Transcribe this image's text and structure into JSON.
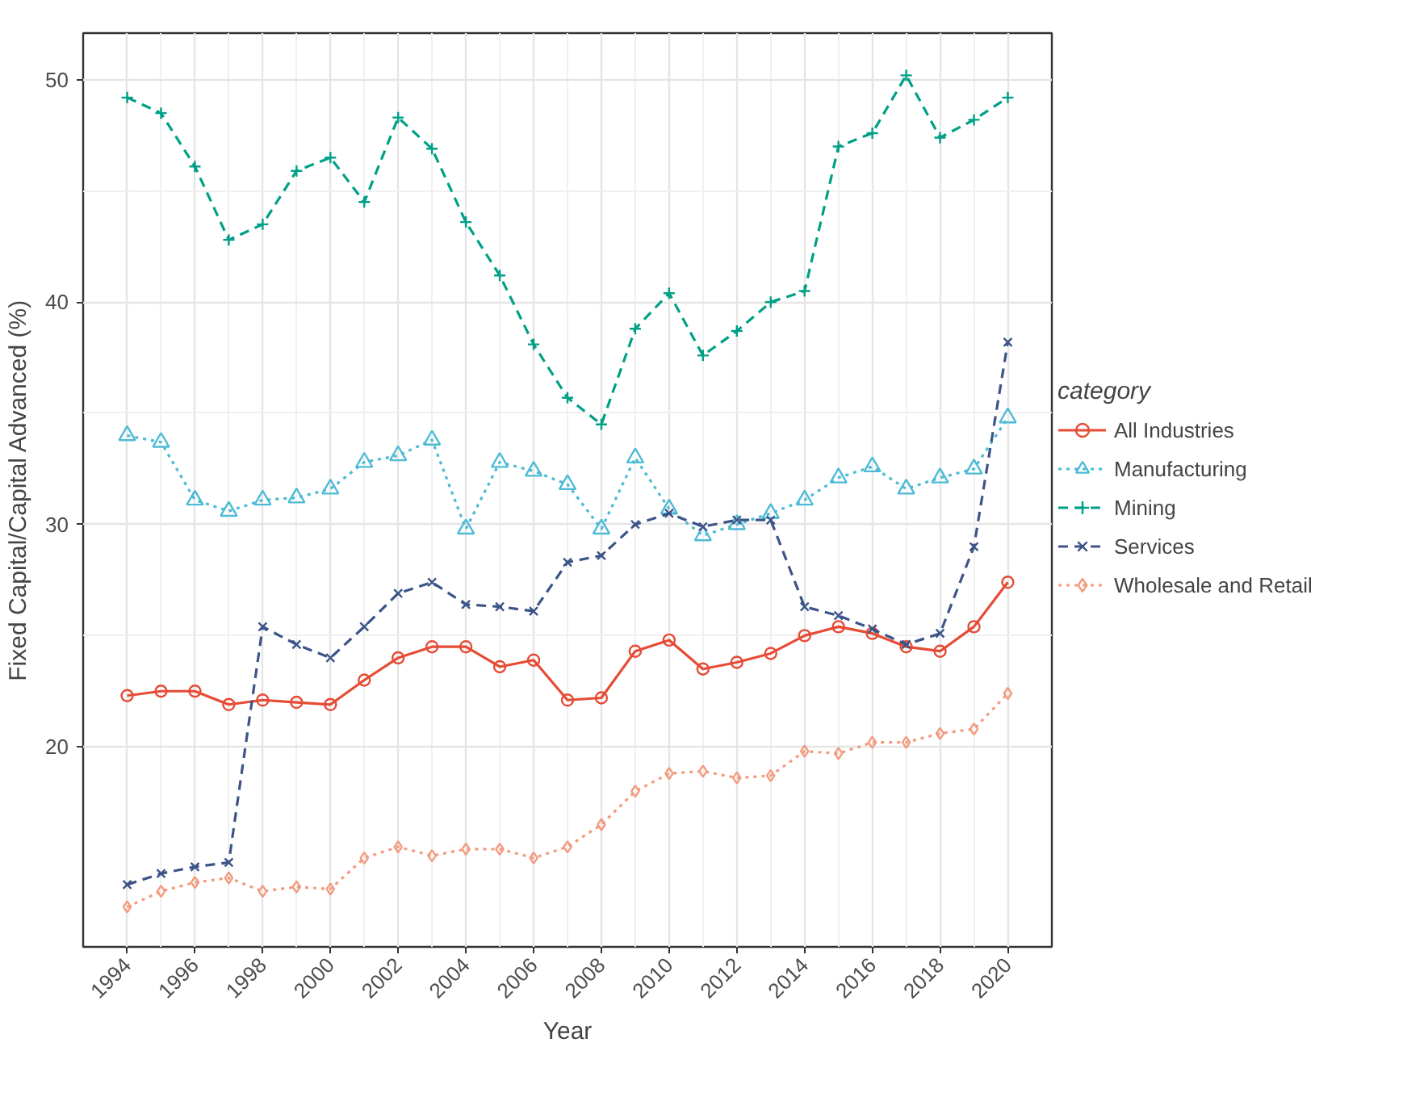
{
  "chart_data": {
    "type": "line",
    "xlabel": "Year",
    "ylabel": "Fixed Capital/Capital Advanced (%)",
    "legend_title": "category",
    "x": [
      1994,
      1995,
      1996,
      1997,
      1998,
      1999,
      2000,
      2001,
      2002,
      2003,
      2004,
      2005,
      2006,
      2007,
      2008,
      2009,
      2010,
      2011,
      2012,
      2013,
      2014,
      2015,
      2016,
      2017,
      2018,
      2019,
      2020
    ],
    "series": [
      {
        "name": "All Industries",
        "color": "#e64b35",
        "marker": "circle",
        "line_style": "solid",
        "values": [
          22.3,
          22.5,
          22.5,
          21.9,
          22.1,
          22.0,
          21.9,
          23.0,
          24.0,
          24.5,
          24.5,
          23.6,
          23.9,
          22.1,
          22.2,
          24.3,
          24.8,
          23.5,
          23.8,
          24.2,
          25.0,
          25.4,
          25.1,
          24.5,
          24.3,
          25.4,
          27.4
        ]
      },
      {
        "name": "Manufacturing",
        "color": "#4dbbd5",
        "marker": "triangle",
        "line_style": "dotted",
        "values": [
          34.0,
          33.7,
          31.1,
          30.6,
          31.1,
          31.2,
          31.6,
          32.8,
          33.1,
          33.8,
          29.8,
          32.8,
          32.4,
          31.8,
          29.8,
          33.0,
          30.7,
          29.5,
          30.0,
          30.5,
          31.1,
          32.1,
          32.6,
          31.6,
          32.1,
          32.5,
          34.8
        ]
      },
      {
        "name": "Mining",
        "color": "#00a087",
        "marker": "cross",
        "line_style": "dashed",
        "values": [
          49.2,
          48.5,
          46.1,
          42.8,
          43.5,
          45.9,
          46.5,
          44.5,
          48.3,
          46.9,
          43.6,
          41.2,
          38.1,
          35.7,
          34.5,
          38.8,
          40.4,
          37.6,
          38.7,
          40.0,
          40.5,
          47.0,
          47.6,
          50.2,
          47.4,
          48.2,
          49.2
        ]
      },
      {
        "name": "Services",
        "color": "#3c5488",
        "marker": "x",
        "line_style": "dashed",
        "values": [
          13.8,
          14.3,
          14.6,
          14.8,
          25.4,
          24.6,
          24.0,
          25.4,
          26.9,
          27.4,
          26.4,
          26.3,
          26.1,
          28.3,
          28.6,
          30.0,
          30.5,
          29.9,
          30.2,
          30.2,
          26.3,
          25.9,
          25.3,
          24.6,
          25.1,
          29.0,
          38.2
        ]
      },
      {
        "name": "Wholesale and Retail",
        "color": "#f39b7f",
        "marker": "diamond",
        "line_style": "dotted",
        "values": [
          12.8,
          13.5,
          13.9,
          14.1,
          13.5,
          13.7,
          13.6,
          15.0,
          15.5,
          15.1,
          15.4,
          15.4,
          15.0,
          15.5,
          16.5,
          18.0,
          18.8,
          18.9,
          18.6,
          18.7,
          19.8,
          19.7,
          20.2,
          20.2,
          20.6,
          20.8,
          22.4
        ]
      }
    ],
    "xlim": [
      1992.7,
      2021.3
    ],
    "ylim": [
      11.0,
      52.1
    ],
    "xticks": [
      1994,
      1996,
      1998,
      2000,
      2002,
      2004,
      2006,
      2008,
      2010,
      2012,
      2014,
      2016,
      2018,
      2020
    ],
    "yticks": [
      20,
      30,
      40,
      50
    ],
    "grid": true,
    "legend": "right"
  }
}
